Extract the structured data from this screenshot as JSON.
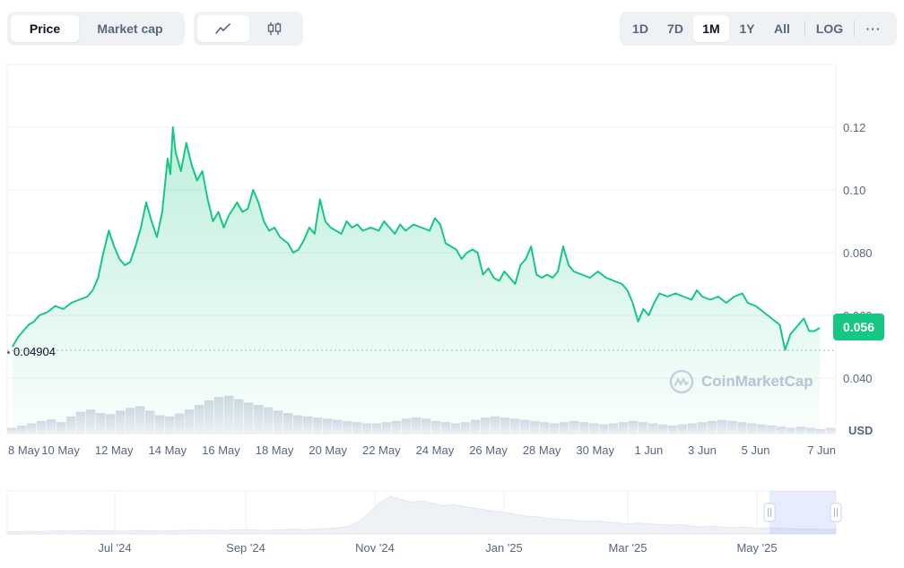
{
  "toolbar": {
    "metric_tabs": [
      {
        "label": "Price",
        "active": true
      },
      {
        "label": "Market cap",
        "active": false
      }
    ],
    "chart_types": [
      {
        "icon": "line-chart-icon",
        "active": true
      },
      {
        "icon": "candlestick-icon",
        "active": false
      }
    ],
    "ranges": [
      {
        "label": "1D",
        "active": false
      },
      {
        "label": "7D",
        "active": false
      },
      {
        "label": "1M",
        "active": true
      },
      {
        "label": "1Y",
        "active": false
      },
      {
        "label": "All",
        "active": false
      }
    ],
    "log_label": "LOG",
    "more_label": "···"
  },
  "current_price": "0.056",
  "baseline_label": "0.04904",
  "watermark": "CoinMarketCap",
  "colors": {
    "line": "#16c784",
    "badge": "#16c784",
    "volume": "#cfd6e4",
    "grid": "#eff2f5"
  },
  "chart_data": {
    "type": "area",
    "currency_label": "USD",
    "y_ticks": [
      "0.040",
      "0.060",
      "0.080",
      "0.10",
      "0.12"
    ],
    "y_tick_values": [
      0.04,
      0.06,
      0.08,
      0.1,
      0.12
    ],
    "ylim": [
      0.035,
      0.14
    ],
    "x_ticks": [
      "8 May",
      "10 May",
      "12 May",
      "14 May",
      "16 May",
      "18 May",
      "20 May",
      "22 May",
      "24 May",
      "26 May",
      "28 May",
      "30 May",
      "1 Jun",
      "3 Jun",
      "5 Jun",
      "7 Jun"
    ],
    "x_tick_days": [
      0,
      2,
      4,
      6,
      8,
      10,
      12,
      14,
      16,
      18,
      20,
      22,
      24,
      26,
      28,
      30
    ],
    "series": [
      {
        "price_points": [
          [
            0.0,
            0.05
          ],
          [
            0.2,
            0.053
          ],
          [
            0.4,
            0.055
          ],
          [
            0.6,
            0.057
          ],
          [
            0.8,
            0.058
          ],
          [
            1.0,
            0.06
          ],
          [
            1.3,
            0.061
          ],
          [
            1.6,
            0.063
          ],
          [
            1.9,
            0.062
          ],
          [
            2.2,
            0.064
          ],
          [
            2.5,
            0.065
          ],
          [
            2.8,
            0.066
          ],
          [
            3.0,
            0.068
          ],
          [
            3.2,
            0.072
          ],
          [
            3.4,
            0.08
          ],
          [
            3.6,
            0.087
          ],
          [
            3.8,
            0.082
          ],
          [
            4.0,
            0.078
          ],
          [
            4.2,
            0.076
          ],
          [
            4.4,
            0.077
          ],
          [
            4.6,
            0.082
          ],
          [
            4.8,
            0.088
          ],
          [
            5.0,
            0.096
          ],
          [
            5.2,
            0.09
          ],
          [
            5.4,
            0.085
          ],
          [
            5.6,
            0.093
          ],
          [
            5.8,
            0.11
          ],
          [
            5.9,
            0.105
          ],
          [
            6.0,
            0.12
          ],
          [
            6.1,
            0.112
          ],
          [
            6.3,
            0.106
          ],
          [
            6.5,
            0.115
          ],
          [
            6.7,
            0.108
          ],
          [
            6.9,
            0.103
          ],
          [
            7.1,
            0.106
          ],
          [
            7.3,
            0.097
          ],
          [
            7.5,
            0.09
          ],
          [
            7.7,
            0.093
          ],
          [
            7.9,
            0.088
          ],
          [
            8.1,
            0.092
          ],
          [
            8.4,
            0.096
          ],
          [
            8.6,
            0.093
          ],
          [
            8.8,
            0.094
          ],
          [
            9.0,
            0.1
          ],
          [
            9.2,
            0.096
          ],
          [
            9.4,
            0.09
          ],
          [
            9.6,
            0.087
          ],
          [
            9.8,
            0.088
          ],
          [
            10.0,
            0.085
          ],
          [
            10.3,
            0.083
          ],
          [
            10.5,
            0.08
          ],
          [
            10.7,
            0.081
          ],
          [
            10.9,
            0.084
          ],
          [
            11.1,
            0.088
          ],
          [
            11.3,
            0.086
          ],
          [
            11.5,
            0.097
          ],
          [
            11.7,
            0.09
          ],
          [
            11.9,
            0.088
          ],
          [
            12.1,
            0.087
          ],
          [
            12.3,
            0.086
          ],
          [
            12.5,
            0.09
          ],
          [
            12.7,
            0.088
          ],
          [
            12.9,
            0.089
          ],
          [
            13.1,
            0.087
          ],
          [
            13.4,
            0.088
          ],
          [
            13.7,
            0.087
          ],
          [
            13.9,
            0.09
          ],
          [
            14.1,
            0.088
          ],
          [
            14.3,
            0.086
          ],
          [
            14.5,
            0.089
          ],
          [
            14.7,
            0.087
          ],
          [
            15.0,
            0.089
          ],
          [
            15.3,
            0.088
          ],
          [
            15.6,
            0.087
          ],
          [
            15.8,
            0.091
          ],
          [
            16.0,
            0.089
          ],
          [
            16.2,
            0.083
          ],
          [
            16.4,
            0.082
          ],
          [
            16.6,
            0.081
          ],
          [
            16.8,
            0.078
          ],
          [
            17.0,
            0.08
          ],
          [
            17.2,
            0.081
          ],
          [
            17.4,
            0.08
          ],
          [
            17.6,
            0.073
          ],
          [
            17.8,
            0.075
          ],
          [
            18.0,
            0.072
          ],
          [
            18.2,
            0.071
          ],
          [
            18.4,
            0.074
          ],
          [
            18.6,
            0.072
          ],
          [
            18.8,
            0.07
          ],
          [
            19.0,
            0.076
          ],
          [
            19.2,
            0.078
          ],
          [
            19.4,
            0.082
          ],
          [
            19.6,
            0.073
          ],
          [
            19.8,
            0.072
          ],
          [
            20.0,
            0.073
          ],
          [
            20.2,
            0.072
          ],
          [
            20.4,
            0.074
          ],
          [
            20.6,
            0.082
          ],
          [
            20.8,
            0.076
          ],
          [
            21.0,
            0.074
          ],
          [
            21.3,
            0.073
          ],
          [
            21.6,
            0.072
          ],
          [
            21.9,
            0.074
          ],
          [
            22.2,
            0.072
          ],
          [
            22.5,
            0.071
          ],
          [
            22.8,
            0.07
          ],
          [
            23.0,
            0.068
          ],
          [
            23.2,
            0.064
          ],
          [
            23.4,
            0.058
          ],
          [
            23.6,
            0.062
          ],
          [
            23.8,
            0.06
          ],
          [
            24.0,
            0.064
          ],
          [
            24.2,
            0.067
          ],
          [
            24.5,
            0.066
          ],
          [
            24.8,
            0.067
          ],
          [
            25.1,
            0.066
          ],
          [
            25.4,
            0.065
          ],
          [
            25.6,
            0.068
          ],
          [
            25.8,
            0.066
          ],
          [
            26.1,
            0.065
          ],
          [
            26.4,
            0.066
          ],
          [
            26.7,
            0.064
          ],
          [
            27.0,
            0.066
          ],
          [
            27.3,
            0.067
          ],
          [
            27.5,
            0.064
          ],
          [
            27.8,
            0.063
          ],
          [
            28.1,
            0.061
          ],
          [
            28.4,
            0.059
          ],
          [
            28.7,
            0.057
          ],
          [
            28.9,
            0.049
          ],
          [
            29.1,
            0.054
          ],
          [
            29.3,
            0.056
          ],
          [
            29.6,
            0.059
          ],
          [
            29.8,
            0.055
          ],
          [
            30.0,
            0.055
          ],
          [
            30.2,
            0.056
          ]
        ]
      }
    ],
    "volume_profile": [
      0.1,
      0.14,
      0.18,
      0.22,
      0.25,
      0.2,
      0.3,
      0.38,
      0.42,
      0.36,
      0.34,
      0.4,
      0.45,
      0.48,
      0.4,
      0.32,
      0.3,
      0.35,
      0.42,
      0.5,
      0.58,
      0.64,
      0.66,
      0.6,
      0.54,
      0.5,
      0.46,
      0.4,
      0.36,
      0.32,
      0.3,
      0.28,
      0.26,
      0.24,
      0.22,
      0.2,
      0.18,
      0.18,
      0.2,
      0.22,
      0.26,
      0.28,
      0.26,
      0.22,
      0.2,
      0.18,
      0.2,
      0.24,
      0.28,
      0.3,
      0.28,
      0.26,
      0.24,
      0.22,
      0.2,
      0.18,
      0.2,
      0.22,
      0.2,
      0.18,
      0.16,
      0.18,
      0.2,
      0.22,
      0.2,
      0.18,
      0.16,
      0.14,
      0.16,
      0.18,
      0.2,
      0.22,
      0.24,
      0.22,
      0.2,
      0.18,
      0.16,
      0.14,
      0.12,
      0.1,
      0.12,
      0.1,
      0.08,
      0.1
    ],
    "navigator": {
      "x_ticks": [
        "Jul '24",
        "Sep '24",
        "Nov '24",
        "Jan '25",
        "Mar '25",
        "May '25"
      ],
      "profile": [
        0.06,
        0.06,
        0.07,
        0.06,
        0.07,
        0.08,
        0.07,
        0.08,
        0.09,
        0.08,
        0.08,
        0.07,
        0.08,
        0.09,
        0.08,
        0.07,
        0.08,
        0.09,
        0.1,
        0.09,
        0.1,
        0.09,
        0.1,
        0.11,
        0.1,
        0.09,
        0.1,
        0.11,
        0.12,
        0.11,
        0.12,
        0.14,
        0.16,
        0.2,
        0.32,
        0.55,
        0.8,
        0.95,
        0.88,
        0.8,
        0.85,
        0.78,
        0.72,
        0.75,
        0.7,
        0.66,
        0.62,
        0.58,
        0.55,
        0.5,
        0.46,
        0.44,
        0.4,
        0.38,
        0.36,
        0.34,
        0.32,
        0.34,
        0.3,
        0.28,
        0.26,
        0.28,
        0.26,
        0.24,
        0.22,
        0.24,
        0.2,
        0.18,
        0.2,
        0.18,
        0.16,
        0.18,
        0.16,
        0.14,
        0.16,
        0.14,
        0.13,
        0.12,
        0.12,
        0.11,
        0.12
      ],
      "window_range": [
        0.92,
        1.0
      ]
    }
  }
}
